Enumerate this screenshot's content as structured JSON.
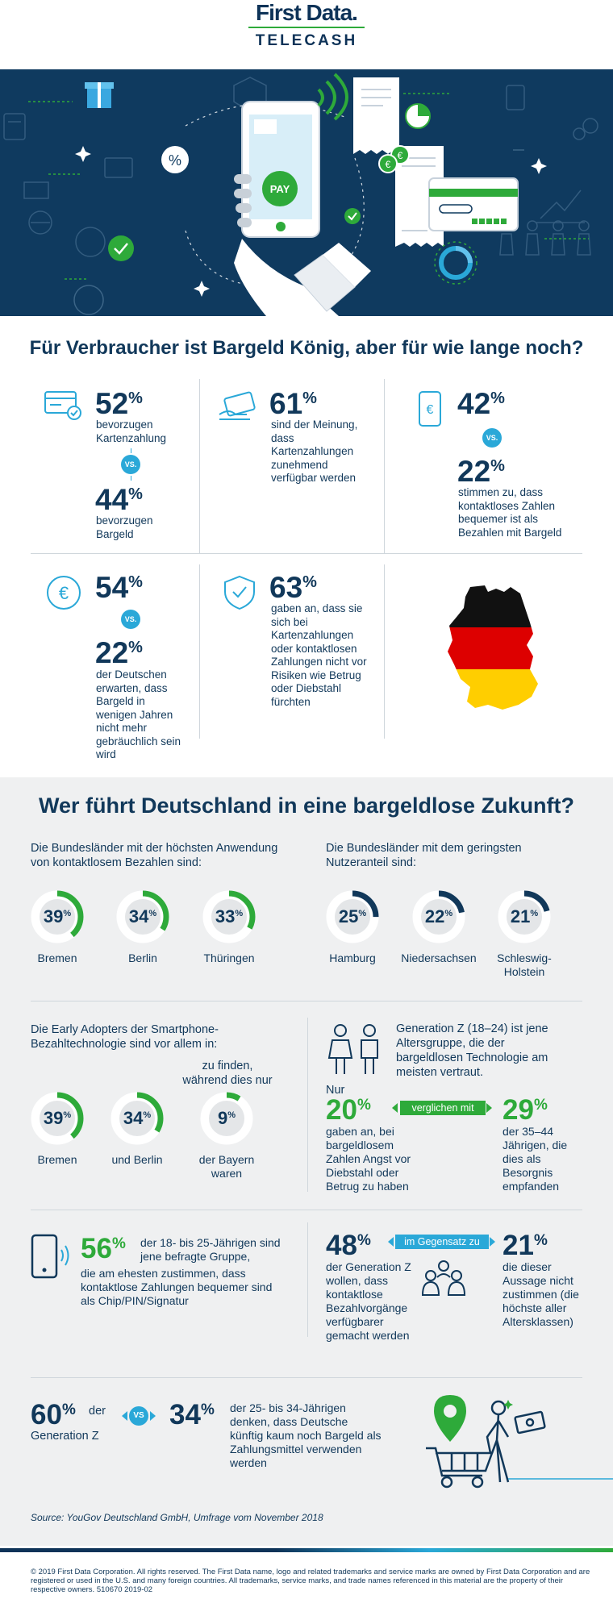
{
  "header": {
    "brand": "First Data.",
    "sub": "TELECASH"
  },
  "hero": {
    "pay_label": "PAY",
    "percent_symbol": "%"
  },
  "section1": {
    "title": "Für Verbraucher ist Bargeld König, aber für wie lange noch?",
    "vs_label": "VS.",
    "stat_a1": {
      "value": "52",
      "text": "bevorzugen Kartenzahlung"
    },
    "stat_a2": {
      "value": "44",
      "text": "bevorzugen Bargeld"
    },
    "stat_b": {
      "value": "61",
      "text": "sind der Meinung, dass Kartenzahlungen zunehmend verfügbar werden"
    },
    "stat_c1": {
      "value": "42"
    },
    "stat_c2": {
      "value": "22",
      "text": "stimmen zu, dass kontaktloses Zahlen bequemer ist als Bezahlen mit Bargeld"
    },
    "stat_d1": {
      "value": "54"
    },
    "stat_d2": {
      "value": "22",
      "text": "der Deutschen erwarten, dass Bargeld in wenigen Jahren nicht mehr gebräuchlich sein wird"
    },
    "stat_e": {
      "value": "63",
      "text": "gaben an, dass sie sich bei Kartenzahlungen oder kontaktlosen Zahlungen nicht vor Risiken wie Betrug oder Diebstahl fürchten"
    },
    "percent": "%",
    "euro_symbol": "€",
    "flag_colors": [
      "#111111",
      "#dd0000",
      "#ffce00"
    ]
  },
  "section2": {
    "title": "Wer führt Deutschland in eine bargeldlose Zukunft?",
    "highest_intro": "Die Bundesländer mit der höchsten Anwendung von kontaktlosem Bezahlen sind:",
    "lowest_intro": "Die Bundesländer mit dem geringsten Nutzeranteil sind:",
    "highest": [
      {
        "value": "39",
        "label": "Bremen",
        "fraction": 0.39
      },
      {
        "value": "34",
        "label": "Berlin",
        "fraction": 0.34
      },
      {
        "value": "33",
        "label": "Thüringen",
        "fraction": 0.33
      }
    ],
    "lowest": [
      {
        "value": "25",
        "label": "Hamburg",
        "fraction": 0.25
      },
      {
        "value": "22",
        "label": "Niedersachsen",
        "fraction": 0.22
      },
      {
        "value": "21",
        "label": "Schleswig-Holstein",
        "fraction": 0.21
      }
    ],
    "early_intro": "Die Early Adopters der Smartphone-Bezahltechnologie sind vor allem in:",
    "early_mid": "zu finden, während dies nur",
    "early": [
      {
        "value": "39",
        "label": "Bremen",
        "fraction": 0.39
      },
      {
        "value": "34",
        "label": "und Berlin",
        "fraction": 0.34
      },
      {
        "value": "9",
        "label": "der Bayern waren",
        "fraction": 0.09
      }
    ],
    "genz_intro": "Generation Z (18–24) ist jene Altersgruppe, die der bargeldlosen Technologie am meisten vertraut.",
    "genz_nur": "Nur",
    "genz_20": "20",
    "genz_20_text": "gaben an, bei bargeldlosem Zahlen Angst vor Diebstahl oder Betrug zu haben",
    "compared": "verglichen mit",
    "genz_29": "29",
    "genz_29_text": "der 35–44 Jährigen, die dies als Besorgnis empfanden",
    "s56": "56",
    "s56_text_a": "der 18- bis 25-Jährigen sind jene befragte Gruppe,",
    "s56_text_b": "die am ehesten zustimmen, dass kontaktlose Zahlungen bequemer sind als Chip/PIN/Signatur",
    "s48": "48",
    "contrast": "im Gegensatz zu",
    "s48_text": "der Generation Z wollen, dass kontaktlose Bezahlvorgänge verfügbarer gemacht werden",
    "s21": "21",
    "s21_text": "die dieser Aussage nicht zustimmen (die höchste aller Altersklassen)",
    "s60": "60",
    "s60_label_a": "der",
    "s60_label_b": "Generation Z",
    "vs_label": "VS",
    "s34": "34",
    "s34_text": "der 25- bis 34-Jährigen denken, dass Deutsche künftig kaum noch Bargeld als Zahlungsmittel verwenden werden",
    "percent": "%",
    "accent_green": "#2eaa3a",
    "accent_cyan": "#2aa8d8"
  },
  "footer": {
    "source": "Source: YouGov Deutschland GmbH, Umfrage vom November 2018",
    "legal": "© 2019 First Data Corporation. All rights reserved. The First Data name, logo and related trademarks and service marks are owned by First Data Corporation and are registered or used in the U.S. and many foreign countries. All trademarks, service marks, and trade names referenced in this material are the property of their respective owners.  510670 2019-02"
  }
}
